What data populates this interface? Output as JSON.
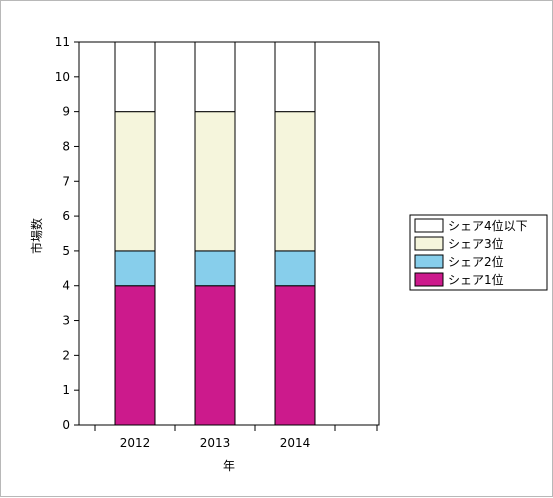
{
  "chart_data": {
    "type": "bar",
    "stacked": true,
    "title": "",
    "xlabel": "年",
    "ylabel": "市場数",
    "ylim": [
      0,
      11
    ],
    "yticks": [
      0,
      1,
      2,
      3,
      4,
      5,
      6,
      7,
      8,
      9,
      10,
      11
    ],
    "grid": false,
    "legend_position": "right",
    "categories": [
      "2012",
      "2013",
      "2014"
    ],
    "series": [
      {
        "name": "シェア1位",
        "values": [
          4,
          4,
          4
        ],
        "color": "#cc1a8c"
      },
      {
        "name": "シェア2位",
        "values": [
          1,
          1,
          1
        ],
        "color": "#87ceeb"
      },
      {
        "name": "シェア3位",
        "values": [
          4,
          4,
          4
        ],
        "color": "#f5f5dc"
      },
      {
        "name": "シェア4位以下",
        "values": [
          2,
          2,
          2
        ],
        "color": "#ffffff"
      }
    ]
  }
}
